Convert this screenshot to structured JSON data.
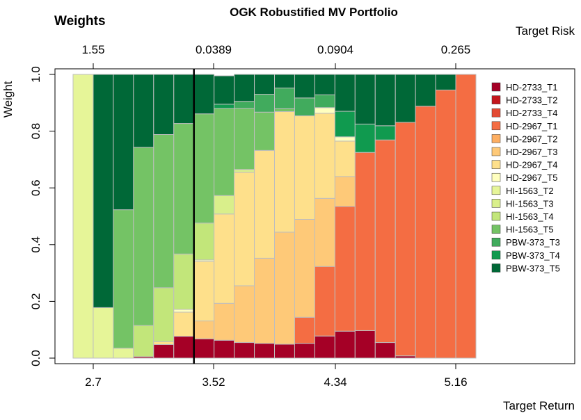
{
  "chart_data": {
    "type": "bar",
    "stacked": true,
    "title": "OGK Robustified MV Portfolio",
    "corner_label": "Weights",
    "ylabel": "Weight",
    "xlabel_bottom": "Target Return",
    "xlabel_top": "Target Risk",
    "ylim": [
      0,
      1
    ],
    "y_ticks": [
      "0.0",
      "0.2",
      "0.4",
      "0.6",
      "0.8",
      "1.0"
    ],
    "x_ticks_bottom": [
      "2.7",
      "3.52",
      "4.34",
      "5.16"
    ],
    "x_ticks_top": [
      "1.55",
      "0.0389",
      "0.0904",
      "0.265"
    ],
    "highlight_after_bar": 6,
    "legend_position": "right",
    "grid": false,
    "series": [
      {
        "name": "HD-2733_T1",
        "color": "#A50026",
        "values": [
          0,
          0,
          0,
          0.005,
          0.048,
          0.077,
          0.068,
          0.063,
          0.055,
          0.052,
          0.049,
          0.052,
          0.078,
          0.095,
          0.097,
          0.055,
          0.008,
          0,
          0,
          0
        ]
      },
      {
        "name": "HD-2733_T2",
        "color": "#C4161C",
        "values": [
          0,
          0,
          0,
          0,
          0,
          0,
          0,
          0,
          0,
          0,
          0,
          0,
          0,
          0,
          0,
          0,
          0,
          0,
          0,
          0
        ]
      },
      {
        "name": "HD-2733_T4",
        "color": "#E34A33",
        "values": [
          0,
          0,
          0,
          0,
          0,
          0,
          0,
          0,
          0,
          0,
          0,
          0,
          0,
          0,
          0,
          0,
          0,
          0,
          0,
          0
        ]
      },
      {
        "name": "HD-2967_T1",
        "color": "#F46D43",
        "values": [
          0,
          0,
          0,
          0,
          0,
          0,
          0,
          0,
          0,
          0,
          0,
          0.092,
          0.245,
          0.44,
          0.628,
          0.714,
          0.823,
          0.888,
          0.945,
          1.0
        ]
      },
      {
        "name": "HD-2967_T2",
        "color": "#FDAE61",
        "values": [
          0,
          0,
          0,
          0,
          0,
          0,
          0,
          0,
          0,
          0,
          0,
          0,
          0,
          0,
          0,
          0,
          0,
          0,
          0,
          0
        ]
      },
      {
        "name": "HD-2967_T3",
        "color": "#FEC978",
        "values": [
          0,
          0,
          0,
          0,
          0,
          0,
          0.063,
          0.13,
          0.2,
          0.3,
          0.395,
          0.345,
          0.24,
          0.105,
          0,
          0,
          0,
          0,
          0,
          0
        ]
      },
      {
        "name": "HD-2967_T4",
        "color": "#FEE08B",
        "values": [
          0,
          0,
          0,
          0,
          0.01,
          0.085,
          0.21,
          0.315,
          0.4,
          0.38,
          0.425,
          0.365,
          0.3,
          0.125,
          0,
          0,
          0,
          0,
          0,
          0
        ]
      },
      {
        "name": "HD-2967_T5",
        "color": "#FFFFBF",
        "values": [
          0,
          0,
          0,
          0,
          0,
          0.01,
          0.005,
          0,
          0,
          0,
          0,
          0,
          0.02,
          0.015,
          0,
          0,
          0,
          0,
          0,
          0
        ]
      },
      {
        "name": "HI-1563_T2",
        "color": "#E6F598",
        "values": [
          1.0,
          0.178,
          0.035,
          0,
          0,
          0,
          0,
          0,
          0,
          0,
          0,
          0,
          0,
          0,
          0,
          0,
          0,
          0,
          0,
          0
        ]
      },
      {
        "name": "HI-1563_T3",
        "color": "#D9EF8B",
        "values": [
          0,
          0,
          0,
          0,
          0,
          0,
          0,
          0.065,
          0.01,
          0,
          0,
          0,
          0,
          0,
          0,
          0,
          0,
          0,
          0,
          0
        ]
      },
      {
        "name": "HI-1563_T4",
        "color": "#C2E67A",
        "values": [
          0,
          0,
          0,
          0.11,
          0.19,
          0.195,
          0.13,
          0,
          0,
          0,
          0,
          0,
          0,
          0,
          0,
          0,
          0,
          0,
          0,
          0
        ]
      },
      {
        "name": "HI-1563_T5",
        "color": "#74C365",
        "values": [
          0,
          0,
          0.488,
          0.628,
          0.54,
          0.46,
          0.385,
          0.307,
          0.215,
          0.135,
          0.01,
          0,
          0,
          0,
          0,
          0,
          0,
          0,
          0,
          0
        ]
      },
      {
        "name": "PBW-373_T3",
        "color": "#41AB5D",
        "values": [
          0,
          0,
          0,
          0,
          0,
          0,
          0,
          0,
          0.025,
          0.063,
          0.073,
          0.063,
          0.045,
          0,
          0,
          0,
          0,
          0,
          0,
          0
        ]
      },
      {
        "name": "PBW-373_T4",
        "color": "#109A4F",
        "values": [
          0,
          0,
          0,
          0,
          0,
          0,
          0,
          0.015,
          0,
          0,
          0,
          0,
          0,
          0.09,
          0.1,
          0.05,
          0,
          0,
          0,
          0
        ]
      },
      {
        "name": "PBW-373_T5",
        "color": "#006837",
        "values": [
          0,
          0.822,
          0.477,
          0.257,
          0.212,
          0.173,
          0.139,
          0.1,
          0.095,
          0.07,
          0.048,
          0.083,
          0.072,
          0.13,
          0.175,
          0.181,
          0.169,
          0.112,
          0.055,
          0
        ]
      }
    ]
  }
}
